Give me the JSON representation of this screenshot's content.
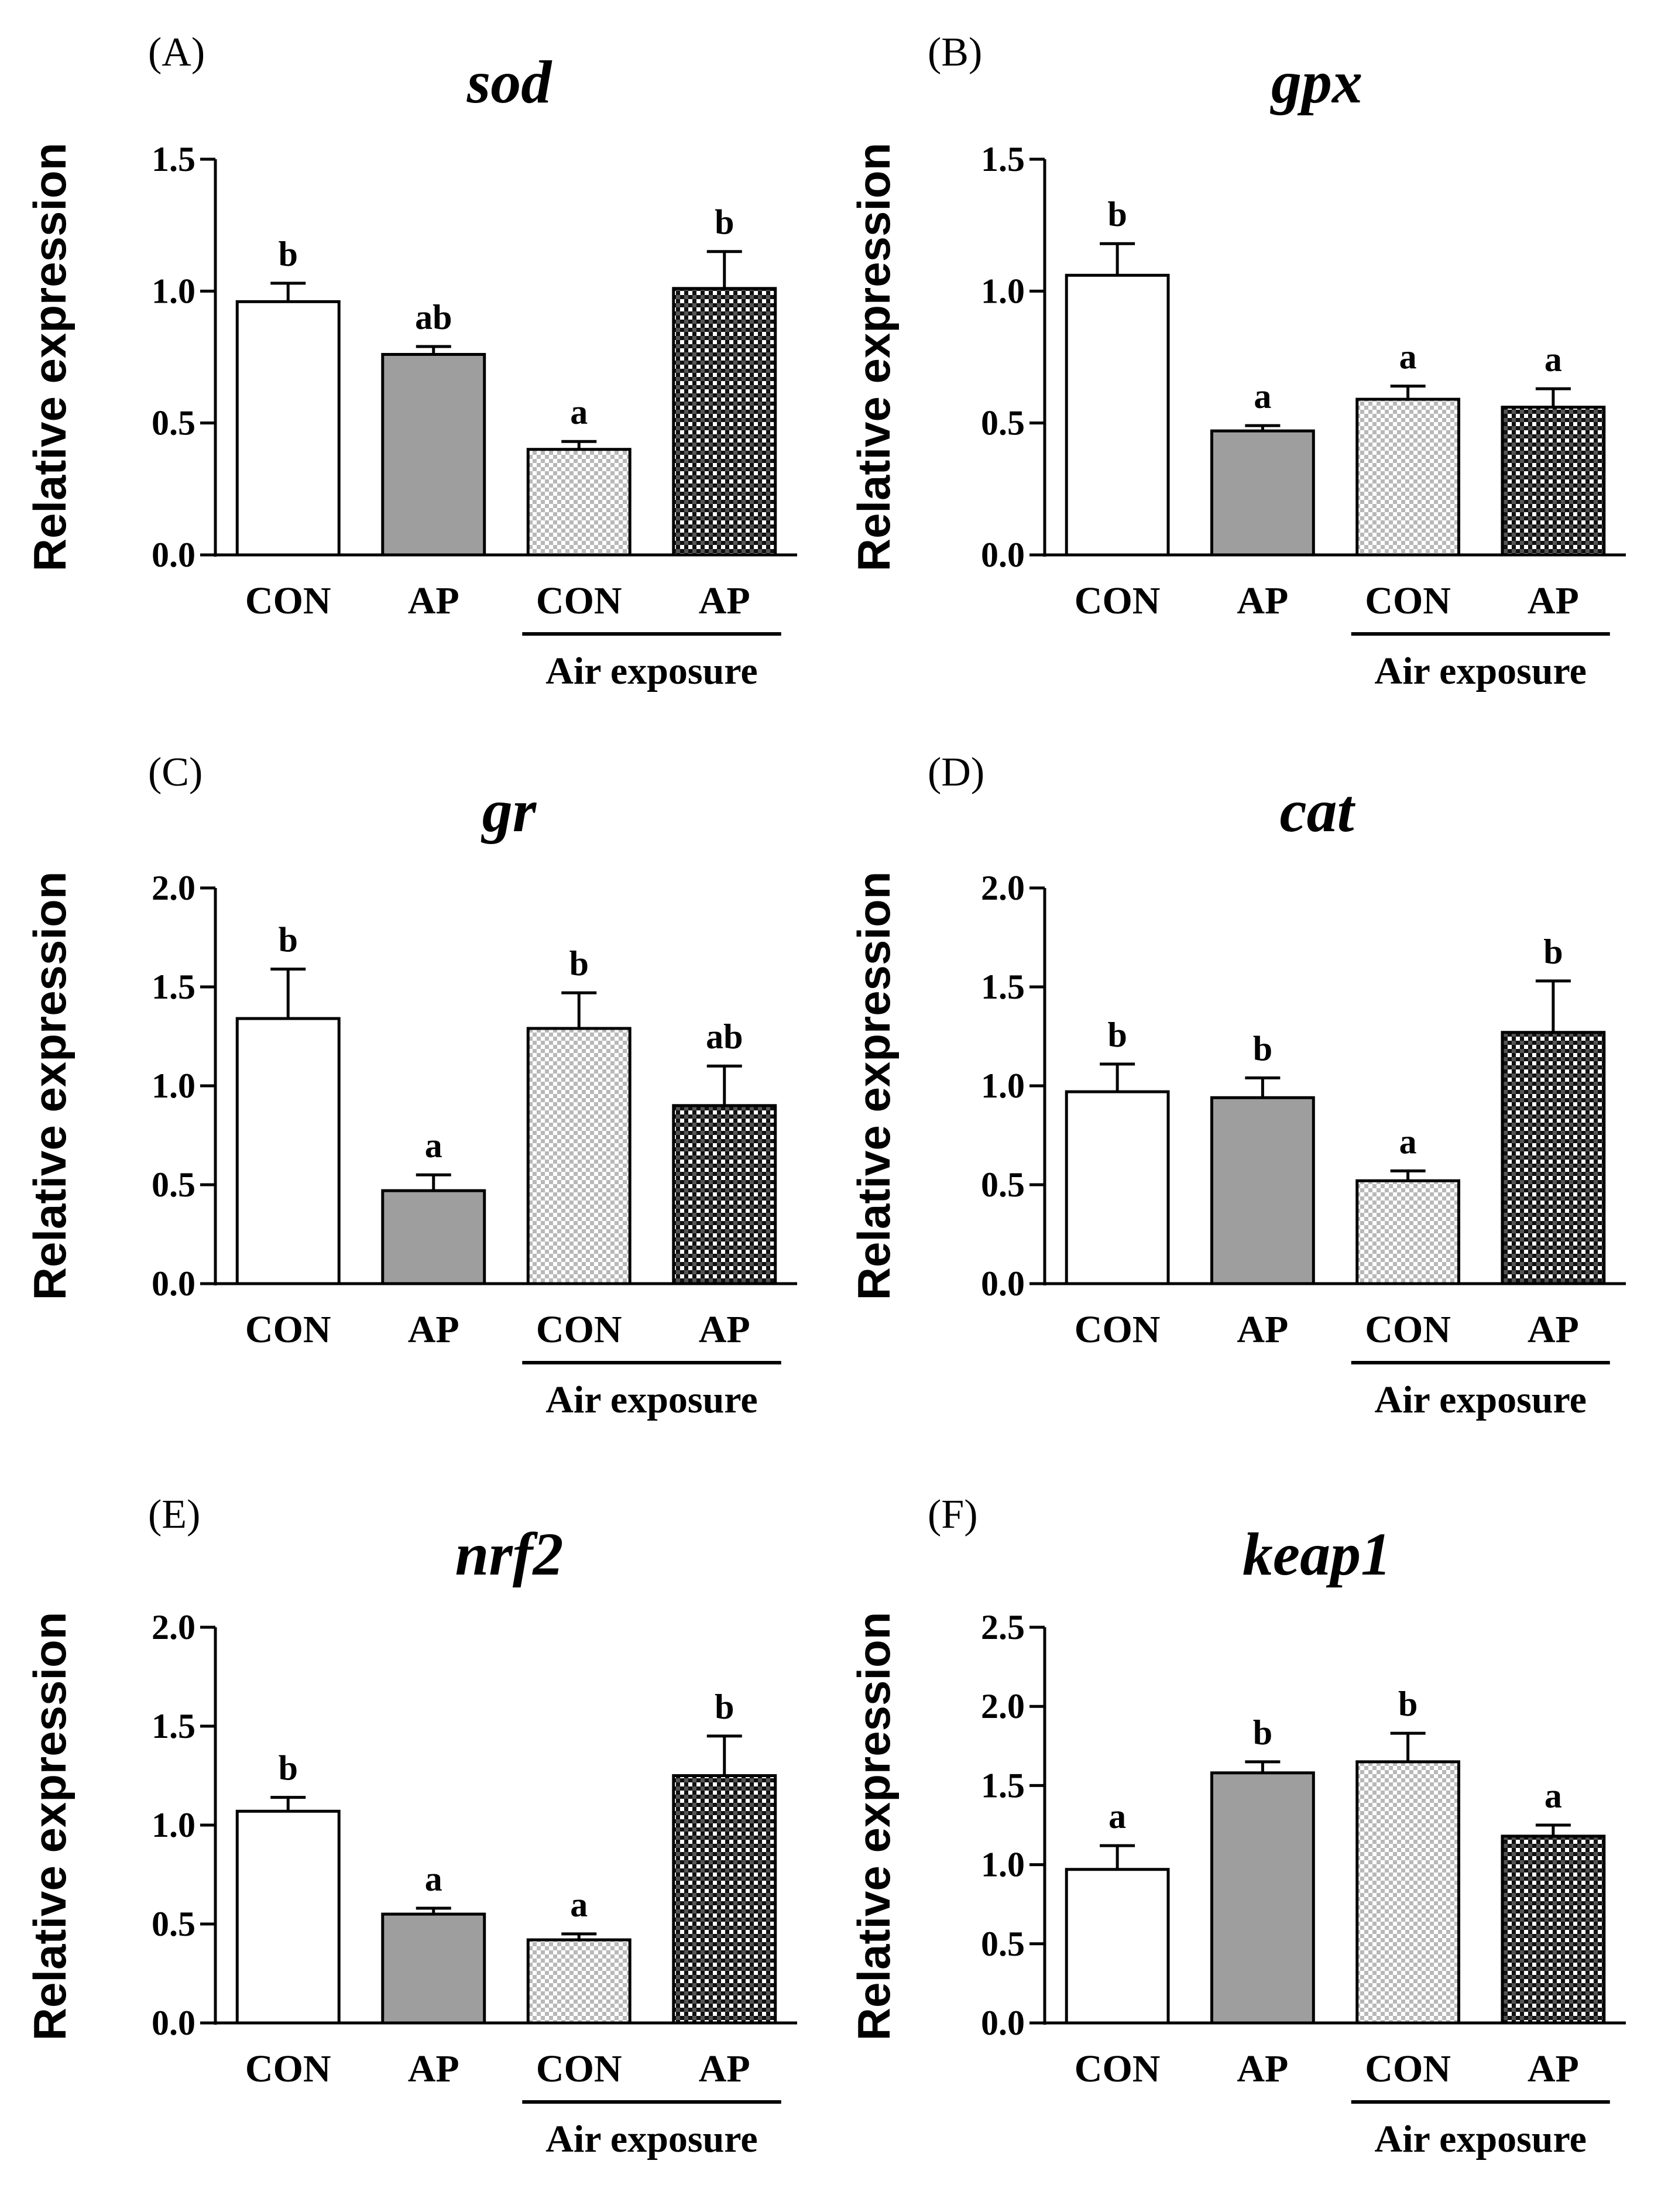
{
  "figure": {
    "colors": {
      "axis": "#000000",
      "gray_fill": "#9e9e9e",
      "white_fill": "#ffffff",
      "light_check": "#c8c8c8",
      "dark_check": "#1c1c1c"
    },
    "group_label": "Air exposure",
    "chart_data": [
      {
        "panel": "(A)",
        "title": "sod",
        "type": "bar",
        "ylabel": "Relative expression",
        "ylim": [
          0,
          1.5
        ],
        "ticks": [
          "0.0",
          "0.5",
          "1.0",
          "1.5"
        ],
        "categories": [
          "CON",
          "AP",
          "CON",
          "AP"
        ],
        "values": [
          0.96,
          0.76,
          0.4,
          1.01
        ],
        "errors": [
          0.07,
          0.03,
          0.03,
          0.14
        ],
        "significance": [
          "b",
          "ab",
          "a",
          "b"
        ]
      },
      {
        "panel": "(B)",
        "title": "gpx",
        "type": "bar",
        "ylabel": "Relative expression",
        "ylim": [
          0,
          1.5
        ],
        "ticks": [
          "0.0",
          "0.5",
          "1.0",
          "1.5"
        ],
        "categories": [
          "CON",
          "AP",
          "CON",
          "AP"
        ],
        "values": [
          1.06,
          0.47,
          0.59,
          0.56
        ],
        "errors": [
          0.12,
          0.02,
          0.05,
          0.07
        ],
        "significance": [
          "b",
          "a",
          "a",
          "a"
        ]
      },
      {
        "panel": "(C)",
        "title": "gr",
        "type": "bar",
        "ylabel": "Relative expression",
        "ylim": [
          0,
          2.0
        ],
        "ticks": [
          "0.0",
          "0.5",
          "1.0",
          "1.5",
          "2.0"
        ],
        "categories": [
          "CON",
          "AP",
          "CON",
          "AP"
        ],
        "values": [
          1.34,
          0.47,
          1.29,
          0.9
        ],
        "errors": [
          0.25,
          0.08,
          0.18,
          0.2
        ],
        "significance": [
          "b",
          "a",
          "b",
          "ab"
        ]
      },
      {
        "panel": "(D)",
        "title": "cat",
        "type": "bar",
        "ylabel": "Relative expression",
        "ylim": [
          0,
          2.0
        ],
        "ticks": [
          "0.0",
          "0.5",
          "1.0",
          "1.5",
          "2.0"
        ],
        "categories": [
          "CON",
          "AP",
          "CON",
          "AP"
        ],
        "values": [
          0.97,
          0.94,
          0.52,
          1.27
        ],
        "errors": [
          0.14,
          0.1,
          0.05,
          0.26
        ],
        "significance": [
          "b",
          "b",
          "a",
          "b"
        ]
      },
      {
        "panel": "(E)",
        "title": "nrf2",
        "type": "bar",
        "ylabel": "Relative expression",
        "ylim": [
          0,
          2.0
        ],
        "ticks": [
          "0.0",
          "0.5",
          "1.0",
          "1.5",
          "2.0"
        ],
        "categories": [
          "CON",
          "AP",
          "CON",
          "AP"
        ],
        "values": [
          1.07,
          0.55,
          0.42,
          1.25
        ],
        "errors": [
          0.07,
          0.03,
          0.03,
          0.2
        ],
        "significance": [
          "b",
          "a",
          "a",
          "b"
        ]
      },
      {
        "panel": "(F)",
        "title": "keap1",
        "type": "bar",
        "ylabel": "Relative expression",
        "ylim": [
          0,
          2.5
        ],
        "ticks": [
          "0.0",
          "0.5",
          "1.0",
          "1.5",
          "2.0",
          "2.5"
        ],
        "categories": [
          "CON",
          "AP",
          "CON",
          "AP"
        ],
        "values": [
          0.97,
          1.58,
          1.65,
          1.18
        ],
        "errors": [
          0.15,
          0.07,
          0.18,
          0.07
        ],
        "significance": [
          "a",
          "b",
          "b",
          "a"
        ]
      }
    ]
  }
}
